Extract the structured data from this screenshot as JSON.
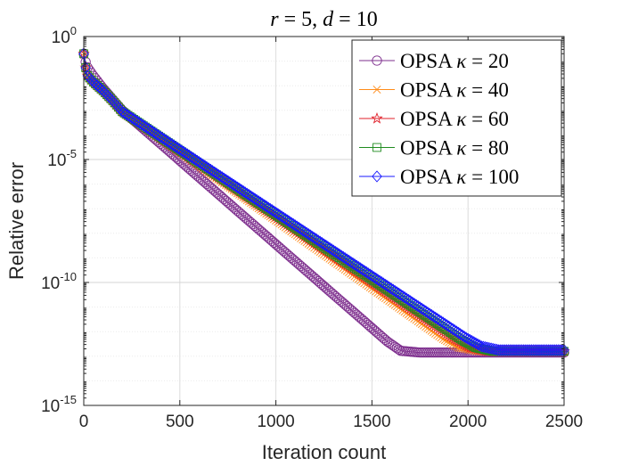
{
  "chart_data": {
    "type": "line",
    "title": "r = 5, d = 10",
    "title_parts": {
      "r": "r",
      "r_val": " = 5, ",
      "d": "d",
      "d_val": " = 10"
    },
    "xlabel": "Iteration count",
    "ylabel": "Relative error",
    "xlim": [
      0,
      2500
    ],
    "ylim_log10": [
      -15,
      0
    ],
    "y_scale": "log",
    "x_ticks": [
      "0",
      "500",
      "1000",
      "1500",
      "2000",
      "2500"
    ],
    "y_ticks": [
      {
        "base": "10",
        "exp": "0"
      },
      {
        "base": "10",
        "exp": "-5"
      },
      {
        "base": "10",
        "exp": "-10"
      },
      {
        "base": "10",
        "exp": "-15"
      }
    ],
    "grid": true,
    "legend_position": "top-right",
    "marker_spacing": 10,
    "series": [
      {
        "name": "OPSA",
        "kappa": "20",
        "color": "#7e2f8e",
        "marker": "circle",
        "x": [
          0,
          15,
          50,
          100,
          150,
          200,
          1580,
          1650,
          1750,
          2500
        ],
        "log10_y": [
          -0.7,
          -1.2,
          -1.6,
          -2.1,
          -2.55,
          -3.0,
          -12.4,
          -12.78,
          -12.85,
          -12.85
        ]
      },
      {
        "name": "OPSA",
        "kappa": "40",
        "color": "#ff8c1a",
        "marker": "x",
        "x": [
          0,
          15,
          50,
          100,
          150,
          200,
          1870,
          1950,
          2050,
          2500
        ],
        "log10_y": [
          -0.7,
          -1.55,
          -1.85,
          -2.2,
          -2.6,
          -3.05,
          -12.3,
          -12.65,
          -12.8,
          -12.8
        ]
      },
      {
        "name": "OPSA",
        "kappa": "60",
        "color": "#e0202a",
        "marker": "star",
        "x": [
          0,
          15,
          50,
          100,
          150,
          200,
          1930,
          2010,
          2100,
          2500
        ],
        "log10_y": [
          -0.7,
          -1.55,
          -1.85,
          -2.2,
          -2.6,
          -3.05,
          -12.3,
          -12.65,
          -12.8,
          -12.8
        ]
      },
      {
        "name": "OPSA",
        "kappa": "80",
        "color": "#1f8c1f",
        "marker": "square",
        "x": [
          0,
          15,
          50,
          100,
          150,
          200,
          1960,
          2040,
          2130,
          2500
        ],
        "log10_y": [
          -0.7,
          -1.55,
          -1.85,
          -2.2,
          -2.6,
          -3.05,
          -12.3,
          -12.65,
          -12.8,
          -12.8
        ]
      },
      {
        "name": "OPSA",
        "kappa": "100",
        "color": "#1a1aff",
        "marker": "diamond",
        "x": [
          0,
          15,
          50,
          100,
          150,
          200,
          1990,
          2070,
          2160,
          2500
        ],
        "log10_y": [
          -0.7,
          -1.55,
          -1.85,
          -2.2,
          -2.6,
          -3.05,
          -12.25,
          -12.6,
          -12.75,
          -12.75
        ]
      }
    ],
    "legend_math": {
      "kappa_symbol": "κ",
      "equals": " = "
    }
  }
}
